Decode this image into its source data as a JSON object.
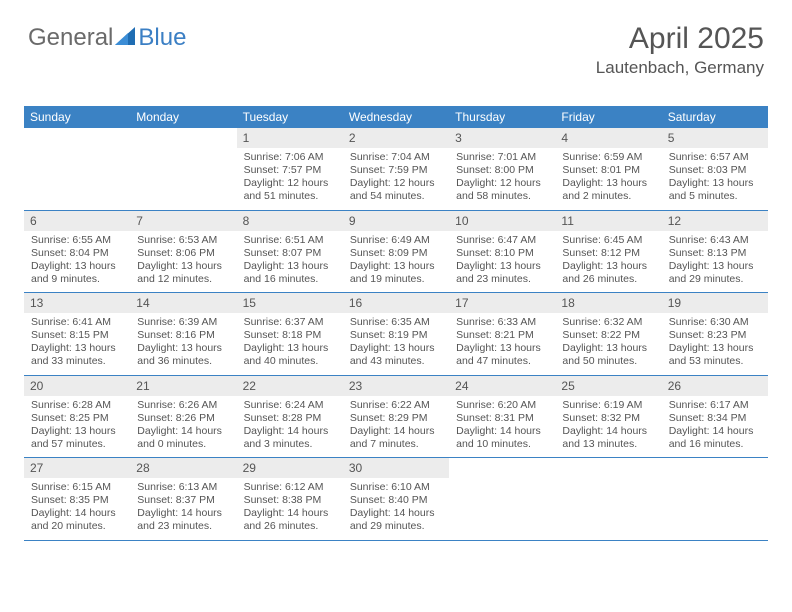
{
  "logo": {
    "left": "General",
    "right": "Blue"
  },
  "header": {
    "title": "April 2025",
    "location": "Lautenbach, Germany"
  },
  "colors": {
    "header_bar": "#3b82c4",
    "daynum_bg": "#ececec",
    "text": "#555555",
    "logo_gray": "#6a6a6a",
    "logo_blue": "#3b7fc4"
  },
  "dow": [
    "Sunday",
    "Monday",
    "Tuesday",
    "Wednesday",
    "Thursday",
    "Friday",
    "Saturday"
  ],
  "weeks": [
    [
      null,
      null,
      {
        "n": "1",
        "sr": "Sunrise: 7:06 AM",
        "ss": "Sunset: 7:57 PM",
        "d1": "Daylight: 12 hours",
        "d2": "and 51 minutes."
      },
      {
        "n": "2",
        "sr": "Sunrise: 7:04 AM",
        "ss": "Sunset: 7:59 PM",
        "d1": "Daylight: 12 hours",
        "d2": "and 54 minutes."
      },
      {
        "n": "3",
        "sr": "Sunrise: 7:01 AM",
        "ss": "Sunset: 8:00 PM",
        "d1": "Daylight: 12 hours",
        "d2": "and 58 minutes."
      },
      {
        "n": "4",
        "sr": "Sunrise: 6:59 AM",
        "ss": "Sunset: 8:01 PM",
        "d1": "Daylight: 13 hours",
        "d2": "and 2 minutes."
      },
      {
        "n": "5",
        "sr": "Sunrise: 6:57 AM",
        "ss": "Sunset: 8:03 PM",
        "d1": "Daylight: 13 hours",
        "d2": "and 5 minutes."
      }
    ],
    [
      {
        "n": "6",
        "sr": "Sunrise: 6:55 AM",
        "ss": "Sunset: 8:04 PM",
        "d1": "Daylight: 13 hours",
        "d2": "and 9 minutes."
      },
      {
        "n": "7",
        "sr": "Sunrise: 6:53 AM",
        "ss": "Sunset: 8:06 PM",
        "d1": "Daylight: 13 hours",
        "d2": "and 12 minutes."
      },
      {
        "n": "8",
        "sr": "Sunrise: 6:51 AM",
        "ss": "Sunset: 8:07 PM",
        "d1": "Daylight: 13 hours",
        "d2": "and 16 minutes."
      },
      {
        "n": "9",
        "sr": "Sunrise: 6:49 AM",
        "ss": "Sunset: 8:09 PM",
        "d1": "Daylight: 13 hours",
        "d2": "and 19 minutes."
      },
      {
        "n": "10",
        "sr": "Sunrise: 6:47 AM",
        "ss": "Sunset: 8:10 PM",
        "d1": "Daylight: 13 hours",
        "d2": "and 23 minutes."
      },
      {
        "n": "11",
        "sr": "Sunrise: 6:45 AM",
        "ss": "Sunset: 8:12 PM",
        "d1": "Daylight: 13 hours",
        "d2": "and 26 minutes."
      },
      {
        "n": "12",
        "sr": "Sunrise: 6:43 AM",
        "ss": "Sunset: 8:13 PM",
        "d1": "Daylight: 13 hours",
        "d2": "and 29 minutes."
      }
    ],
    [
      {
        "n": "13",
        "sr": "Sunrise: 6:41 AM",
        "ss": "Sunset: 8:15 PM",
        "d1": "Daylight: 13 hours",
        "d2": "and 33 minutes."
      },
      {
        "n": "14",
        "sr": "Sunrise: 6:39 AM",
        "ss": "Sunset: 8:16 PM",
        "d1": "Daylight: 13 hours",
        "d2": "and 36 minutes."
      },
      {
        "n": "15",
        "sr": "Sunrise: 6:37 AM",
        "ss": "Sunset: 8:18 PM",
        "d1": "Daylight: 13 hours",
        "d2": "and 40 minutes."
      },
      {
        "n": "16",
        "sr": "Sunrise: 6:35 AM",
        "ss": "Sunset: 8:19 PM",
        "d1": "Daylight: 13 hours",
        "d2": "and 43 minutes."
      },
      {
        "n": "17",
        "sr": "Sunrise: 6:33 AM",
        "ss": "Sunset: 8:21 PM",
        "d1": "Daylight: 13 hours",
        "d2": "and 47 minutes."
      },
      {
        "n": "18",
        "sr": "Sunrise: 6:32 AM",
        "ss": "Sunset: 8:22 PM",
        "d1": "Daylight: 13 hours",
        "d2": "and 50 minutes."
      },
      {
        "n": "19",
        "sr": "Sunrise: 6:30 AM",
        "ss": "Sunset: 8:23 PM",
        "d1": "Daylight: 13 hours",
        "d2": "and 53 minutes."
      }
    ],
    [
      {
        "n": "20",
        "sr": "Sunrise: 6:28 AM",
        "ss": "Sunset: 8:25 PM",
        "d1": "Daylight: 13 hours",
        "d2": "and 57 minutes."
      },
      {
        "n": "21",
        "sr": "Sunrise: 6:26 AM",
        "ss": "Sunset: 8:26 PM",
        "d1": "Daylight: 14 hours",
        "d2": "and 0 minutes."
      },
      {
        "n": "22",
        "sr": "Sunrise: 6:24 AM",
        "ss": "Sunset: 8:28 PM",
        "d1": "Daylight: 14 hours",
        "d2": "and 3 minutes."
      },
      {
        "n": "23",
        "sr": "Sunrise: 6:22 AM",
        "ss": "Sunset: 8:29 PM",
        "d1": "Daylight: 14 hours",
        "d2": "and 7 minutes."
      },
      {
        "n": "24",
        "sr": "Sunrise: 6:20 AM",
        "ss": "Sunset: 8:31 PM",
        "d1": "Daylight: 14 hours",
        "d2": "and 10 minutes."
      },
      {
        "n": "25",
        "sr": "Sunrise: 6:19 AM",
        "ss": "Sunset: 8:32 PM",
        "d1": "Daylight: 14 hours",
        "d2": "and 13 minutes."
      },
      {
        "n": "26",
        "sr": "Sunrise: 6:17 AM",
        "ss": "Sunset: 8:34 PM",
        "d1": "Daylight: 14 hours",
        "d2": "and 16 minutes."
      }
    ],
    [
      {
        "n": "27",
        "sr": "Sunrise: 6:15 AM",
        "ss": "Sunset: 8:35 PM",
        "d1": "Daylight: 14 hours",
        "d2": "and 20 minutes."
      },
      {
        "n": "28",
        "sr": "Sunrise: 6:13 AM",
        "ss": "Sunset: 8:37 PM",
        "d1": "Daylight: 14 hours",
        "d2": "and 23 minutes."
      },
      {
        "n": "29",
        "sr": "Sunrise: 6:12 AM",
        "ss": "Sunset: 8:38 PM",
        "d1": "Daylight: 14 hours",
        "d2": "and 26 minutes."
      },
      {
        "n": "30",
        "sr": "Sunrise: 6:10 AM",
        "ss": "Sunset: 8:40 PM",
        "d1": "Daylight: 14 hours",
        "d2": "and 29 minutes."
      },
      null,
      null,
      null
    ]
  ]
}
